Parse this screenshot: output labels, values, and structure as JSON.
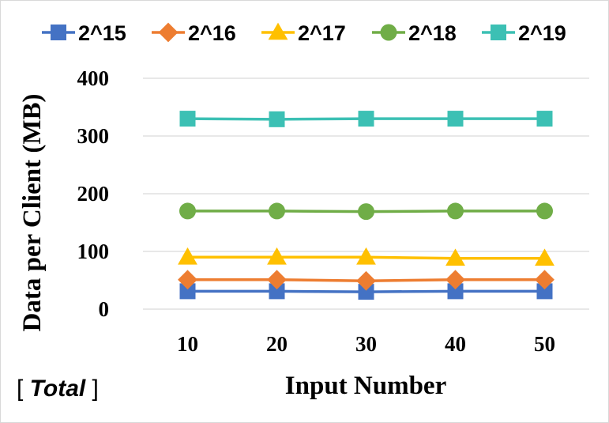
{
  "chart_data": {
    "type": "line",
    "x": [
      10,
      20,
      30,
      40,
      50
    ],
    "categories": [
      "10",
      "20",
      "30",
      "40",
      "50"
    ],
    "xlabel": "Input Number",
    "ylabel": "Data per Client (MB)",
    "ylim": [
      0,
      400
    ],
    "yticks": [
      "0",
      "100",
      "200",
      "300",
      "400"
    ],
    "grid": true,
    "legend": "top",
    "series": [
      {
        "name": "2^15",
        "color": "#4472c4",
        "marker": "square",
        "values": [
          31,
          31,
          30,
          31,
          31
        ]
      },
      {
        "name": "2^16",
        "color": "#ed7d31",
        "marker": "diamond",
        "values": [
          51,
          51,
          49,
          51,
          51
        ]
      },
      {
        "name": "2^17",
        "color": "#ffc000",
        "marker": "triangle",
        "values": [
          90,
          90,
          90,
          88,
          88
        ]
      },
      {
        "name": "2^18",
        "color": "#70ad47",
        "marker": "circle",
        "values": [
          170,
          170,
          169,
          170,
          170
        ]
      },
      {
        "name": "2^19",
        "color": "#3cc0b4",
        "marker": "square",
        "values": [
          330,
          329,
          330,
          330,
          330
        ]
      }
    ]
  },
  "note": {
    "open": "[ ",
    "text": "Total",
    "close": " ]"
  }
}
